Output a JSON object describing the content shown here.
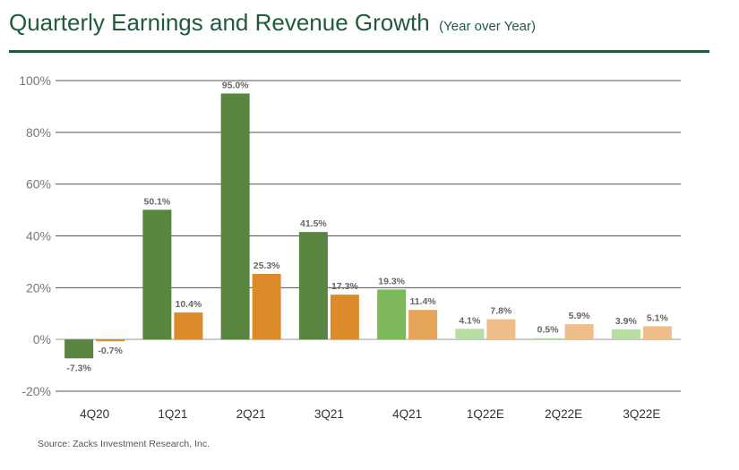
{
  "header": {
    "title": "Quarterly Earnings and Revenue Growth",
    "subtitle": "(Year over Year)"
  },
  "footer": {
    "source": "Source: Zacks Investment Research, Inc."
  },
  "chart_data": {
    "type": "bar",
    "title": "Quarterly Earnings and Revenue Growth",
    "subtitle": "(Year over Year)",
    "categories": [
      "4Q20",
      "1Q21",
      "2Q21",
      "3Q21",
      "4Q21",
      "1Q22E",
      "2Q22E",
      "3Q22E"
    ],
    "series": [
      {
        "values": [
          -7.3,
          50.1,
          95.0,
          41.5,
          19.3,
          4.1,
          0.5,
          3.9
        ],
        "labels": [
          "-7.3%",
          "50.1%",
          "95.0%",
          "41.5%",
          "19.3%",
          "4.1%",
          "0.5%",
          "3.9%"
        ],
        "colors": [
          "#588540",
          "#588540",
          "#588540",
          "#588540",
          "#7db85a",
          "#b9dba4",
          "#b9dba4",
          "#b9dba4"
        ]
      },
      {
        "values": [
          -0.7,
          10.4,
          25.3,
          17.3,
          11.4,
          7.8,
          5.9,
          5.1
        ],
        "labels": [
          "-0.7%",
          "10.4%",
          "25.3%",
          "17.3%",
          "11.4%",
          "7.8%",
          "5.9%",
          "5.1%"
        ],
        "colors": [
          "#dd8a2b",
          "#dd8a2b",
          "#dd8a2b",
          "#dd8a2b",
          "#e4a55a",
          "#eebd8a",
          "#eebd8a",
          "#eebd8a"
        ]
      }
    ],
    "ylim": [
      -20,
      100
    ],
    "yticks": [
      -20,
      0,
      20,
      40,
      60,
      80,
      100
    ],
    "ytick_labels": [
      "-20%",
      "0%",
      "20%",
      "40%",
      "60%",
      "80%",
      "100%"
    ],
    "grid": true,
    "legend": "none",
    "colors": {
      "title": "#1e5c3a",
      "grid_dark": "#555555",
      "grid_light": "#bbbbbb"
    }
  }
}
